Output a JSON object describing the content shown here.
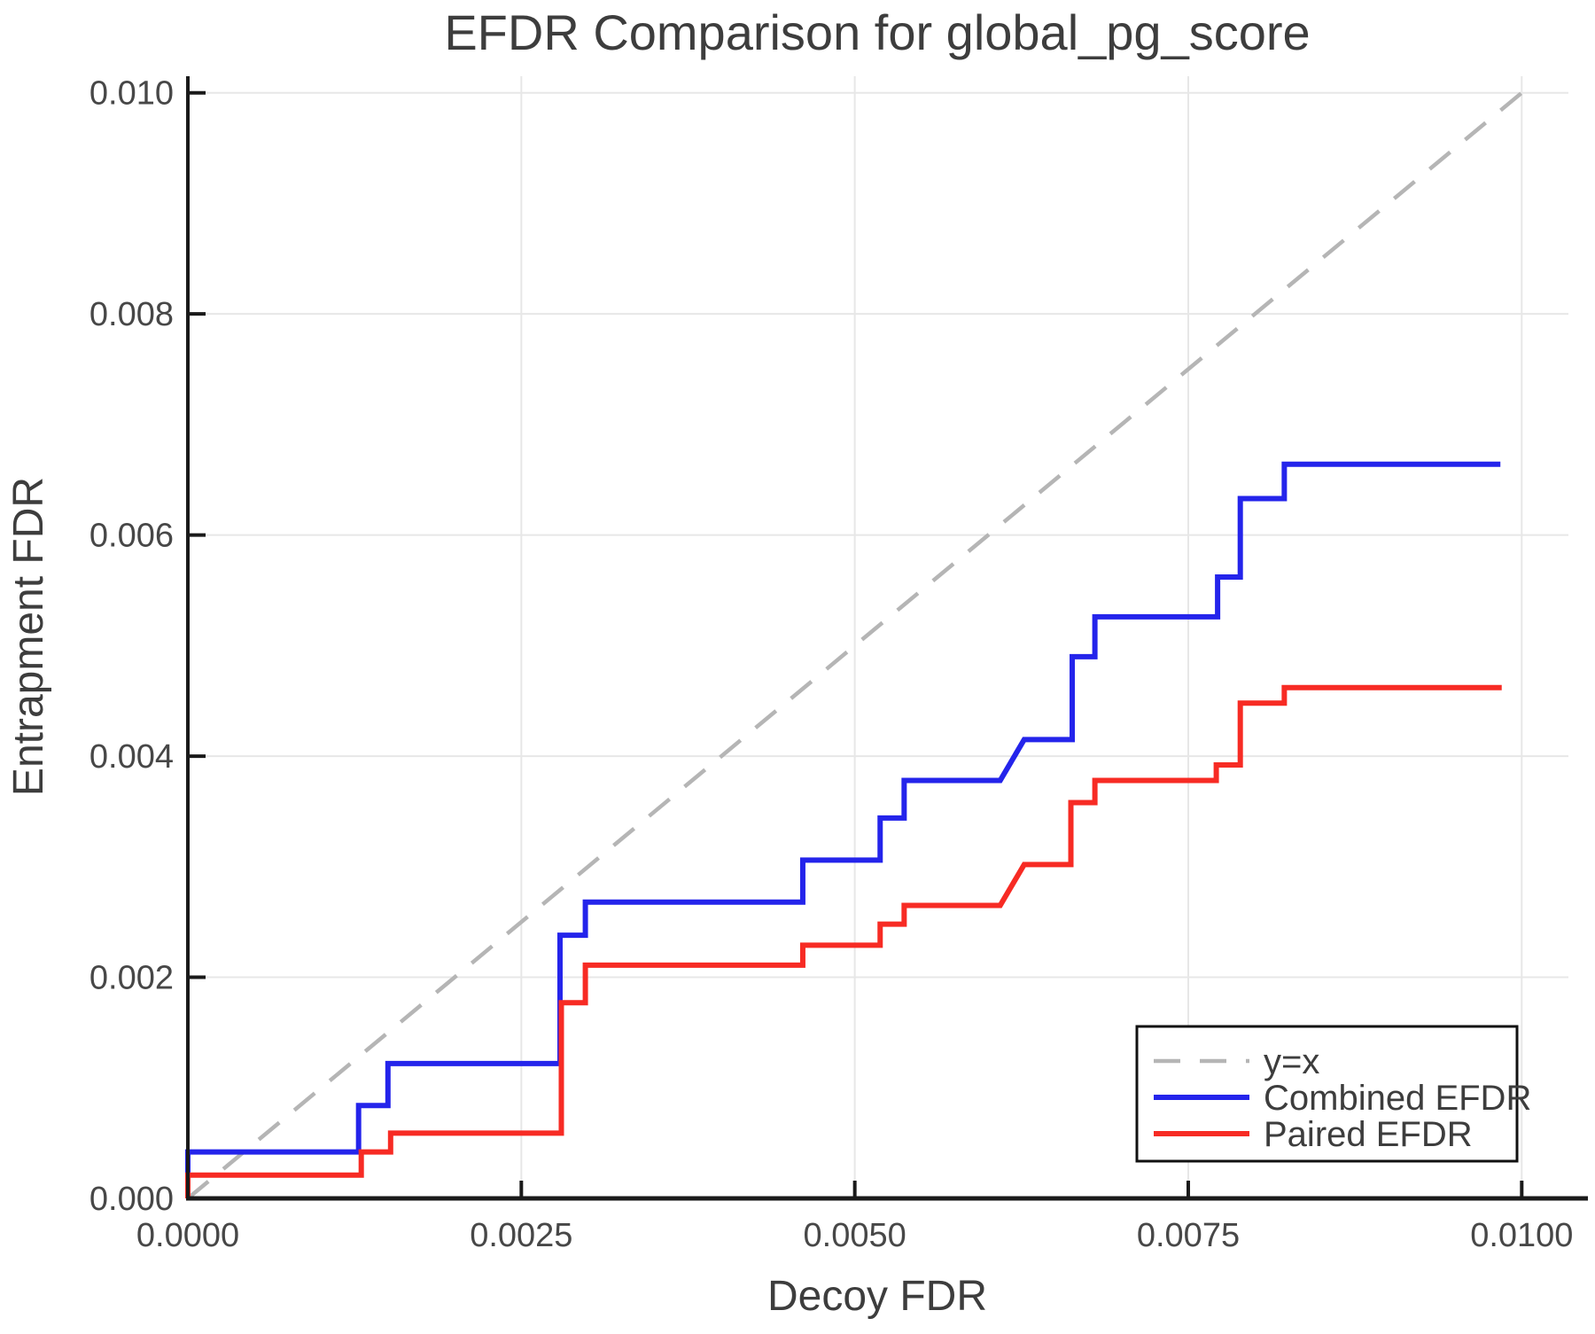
{
  "chart_data": {
    "type": "line",
    "title": "EFDR Comparison for global_pg_score",
    "xlabel": "Decoy FDR",
    "ylabel": "Entrapment FDR",
    "xlim": [
      0,
      0.01035
    ],
    "ylim": [
      0,
      0.01015
    ],
    "xticks": [
      0.0,
      0.0025,
      0.005,
      0.0075,
      0.01
    ],
    "xtick_labels": [
      "0.0000",
      "0.0025",
      "0.0050",
      "0.0075",
      "0.0100"
    ],
    "yticks": [
      0.0,
      0.002,
      0.004,
      0.006,
      0.008,
      0.01
    ],
    "ytick_labels": [
      "0.000",
      "0.002",
      "0.004",
      "0.006",
      "0.008",
      "0.010"
    ],
    "grid": true,
    "legend_position": "lower right",
    "colors": {
      "grid": "#e7e7e7",
      "spine": "#1a1a1a",
      "text": "#3d3d3d"
    },
    "reference_line": {
      "name": "y=x",
      "style": "dashed",
      "color": "#b5b5b5",
      "points": [
        [
          0,
          0
        ],
        [
          0.01,
          0.01
        ]
      ]
    },
    "series": [
      {
        "name": "Combined EFDR",
        "color": "#2424eb",
        "points": [
          [
            0,
            0
          ],
          [
            0,
            0.00042
          ],
          [
            0.00128,
            0.00042
          ],
          [
            0.00128,
            0.00084
          ],
          [
            0.0015,
            0.00084
          ],
          [
            0.0015,
            0.00122
          ],
          [
            0.00279,
            0.00122
          ],
          [
            0.00279,
            0.00238
          ],
          [
            0.00298,
            0.00238
          ],
          [
            0.00298,
            0.00268
          ],
          [
            0.00461,
            0.00268
          ],
          [
            0.00461,
            0.00306
          ],
          [
            0.00519,
            0.00306
          ],
          [
            0.00519,
            0.00344
          ],
          [
            0.00537,
            0.00344
          ],
          [
            0.00537,
            0.00378
          ],
          [
            0.00609,
            0.00378
          ],
          [
            0.00627,
            0.00415
          ],
          [
            0.00663,
            0.00415
          ],
          [
            0.00663,
            0.0049
          ],
          [
            0.0068,
            0.0049
          ],
          [
            0.0068,
            0.00526
          ],
          [
            0.00772,
            0.00526
          ],
          [
            0.00772,
            0.00562
          ],
          [
            0.00789,
            0.00562
          ],
          [
            0.00789,
            0.00633
          ],
          [
            0.00822,
            0.00633
          ],
          [
            0.00822,
            0.00664
          ],
          [
            0.00984,
            0.00664
          ]
        ]
      },
      {
        "name": "Paired EFDR",
        "color": "#f72b24",
        "points": [
          [
            0,
            0
          ],
          [
            0,
            0.00021
          ],
          [
            0.0013,
            0.00021
          ],
          [
            0.0013,
            0.00042
          ],
          [
            0.00152,
            0.00042
          ],
          [
            0.00152,
            0.00059
          ],
          [
            0.0028,
            0.00059
          ],
          [
            0.0028,
            0.00177
          ],
          [
            0.00298,
            0.00177
          ],
          [
            0.00298,
            0.00211
          ],
          [
            0.00461,
            0.00211
          ],
          [
            0.00461,
            0.00229
          ],
          [
            0.00519,
            0.00229
          ],
          [
            0.00519,
            0.00248
          ],
          [
            0.00537,
            0.00248
          ],
          [
            0.00537,
            0.00265
          ],
          [
            0.00609,
            0.00265
          ],
          [
            0.00627,
            0.00302
          ],
          [
            0.00662,
            0.00302
          ],
          [
            0.00662,
            0.00358
          ],
          [
            0.0068,
            0.00358
          ],
          [
            0.0068,
            0.00378
          ],
          [
            0.00771,
            0.00378
          ],
          [
            0.00771,
            0.00392
          ],
          [
            0.00789,
            0.00392
          ],
          [
            0.00789,
            0.00448
          ],
          [
            0.00822,
            0.00448
          ],
          [
            0.00822,
            0.00462
          ],
          [
            0.00985,
            0.00462
          ]
        ]
      }
    ]
  }
}
